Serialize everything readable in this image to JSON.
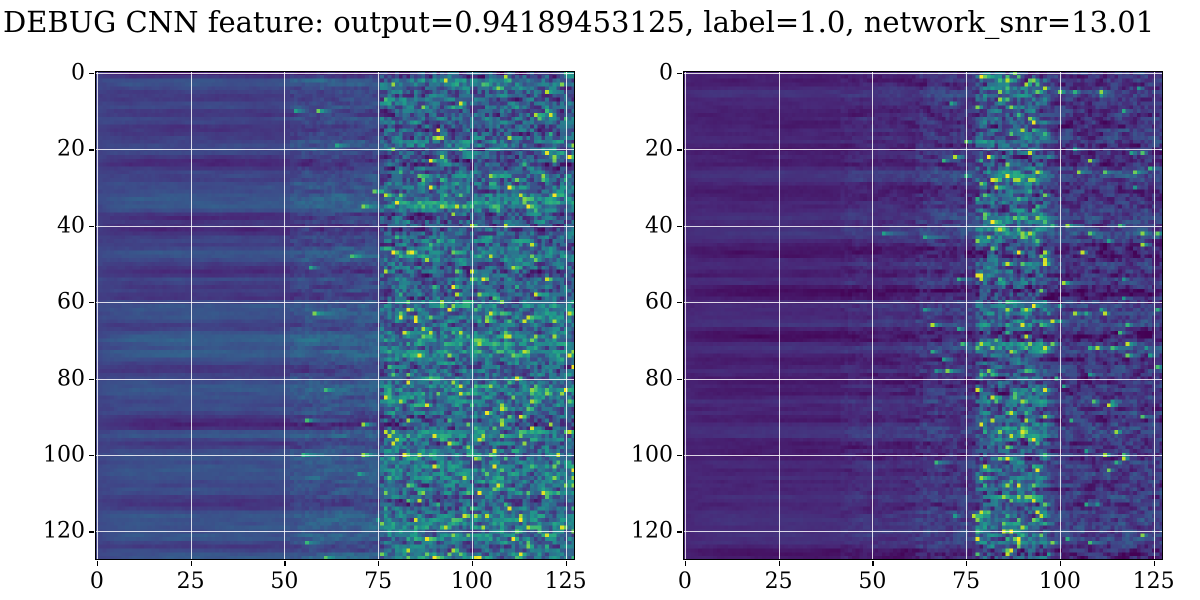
{
  "figure": {
    "title": "DEBUG CNN feature: output=0.94189453125, label=1.0, network_snr=13.01",
    "output": "0.94189453125",
    "label": "1.0",
    "network_snr": "13.01"
  },
  "chart_data": {
    "type": "heatmap",
    "title": "DEBUG CNN feature: output=0.94189453125, label=1.0, network_snr=13.01",
    "colormap": "viridis",
    "colormap_stops": [
      "#440154",
      "#482878",
      "#3e4989",
      "#31688e",
      "#26828e",
      "#1f9e89",
      "#35b779",
      "#6ece58",
      "#b5de2b",
      "#fde725"
    ],
    "grid": true,
    "grid_color": "#ffffff",
    "background": "#ffffff",
    "panels": [
      {
        "name": "left",
        "n_cols": 128,
        "n_rows": 128,
        "x_ticks": [
          0,
          25,
          50,
          75,
          100,
          125
        ],
        "y_ticks": [
          0,
          20,
          40,
          60,
          80,
          100,
          120
        ],
        "x_range": [
          -0.5,
          127.5
        ],
        "y_range": [
          127.5,
          -0.5
        ],
        "description": "CNN input feature map: smooth blue horizontally-striped low-amplitude region for x<~50, mildly noisier teal band ~50-75, strongly noisy teal/green region with bright yellow speckles for x>~75.",
        "seed": 42,
        "row_band_seed": 7,
        "zones": [
          {
            "x0": 0,
            "x1": 52,
            "mean": 0.2,
            "band": 0.07,
            "noise": 0.07,
            "h_smooth": 0.8,
            "speckle_p": 0.0,
            "speckle_lo": 0.0,
            "speckle_hi": 0.0,
            "speckle_row_bias": 0
          },
          {
            "x0": 52,
            "x1": 76,
            "mean": 0.235,
            "band": 0.07,
            "noise": 0.12,
            "h_smooth": 0.6,
            "speckle_p": 0.004,
            "speckle_lo": 0.55,
            "speckle_hi": 0.85,
            "speckle_row_bias": 1.0
          },
          {
            "x0": 76,
            "x1": 128,
            "mean": 0.32,
            "band": 0.07,
            "noise": 0.3,
            "h_smooth": 0.35,
            "speckle_p": 0.03,
            "speckle_lo": 0.6,
            "speckle_hi": 1.0,
            "speckle_row_bias": 1.5
          }
        ]
      },
      {
        "name": "right",
        "n_cols": 128,
        "n_rows": 128,
        "x_ticks": [
          0,
          25,
          50,
          75,
          100,
          125
        ],
        "y_ticks": [
          0,
          20,
          40,
          60,
          80,
          100,
          120
        ],
        "x_range": [
          -0.5,
          127.5
        ],
        "y_range": [
          127.5,
          -0.5
        ],
        "description": "CNN input feature map: very dark purple striped region for x<~50, transition ~50-78, bright noisy vertical band with dense yellow-green speckles ~78-96, sparser dark noise beyond.",
        "seed": 1337,
        "row_band_seed": 21,
        "zones": [
          {
            "x0": 0,
            "x1": 42,
            "mean": 0.105,
            "band": 0.05,
            "noise": 0.05,
            "h_smooth": 0.8,
            "speckle_p": 0.0,
            "speckle_lo": 0.0,
            "speckle_hi": 0.0,
            "speckle_row_bias": 0
          },
          {
            "x0": 42,
            "x1": 62,
            "mean": 0.125,
            "band": 0.055,
            "noise": 0.09,
            "h_smooth": 0.65,
            "speckle_p": 0.002,
            "speckle_lo": 0.5,
            "speckle_hi": 0.8,
            "speckle_row_bias": 1.0
          },
          {
            "x0": 62,
            "x1": 78,
            "mean": 0.16,
            "band": 0.06,
            "noise": 0.14,
            "h_smooth": 0.5,
            "speckle_p": 0.006,
            "speckle_lo": 0.5,
            "speckle_hi": 0.9,
            "speckle_row_bias": 1.5
          },
          {
            "x0": 78,
            "x1": 97,
            "mean": 0.3,
            "band": 0.08,
            "noise": 0.3,
            "h_smooth": 0.35,
            "speckle_p": 0.05,
            "speckle_lo": 0.6,
            "speckle_hi": 1.0,
            "speckle_row_bias": 2.0
          },
          {
            "x0": 97,
            "x1": 128,
            "mean": 0.165,
            "band": 0.06,
            "noise": 0.16,
            "h_smooth": 0.4,
            "speckle_p": 0.012,
            "speckle_lo": 0.5,
            "speckle_hi": 0.95,
            "speckle_row_bias": 1.5
          }
        ]
      }
    ]
  }
}
